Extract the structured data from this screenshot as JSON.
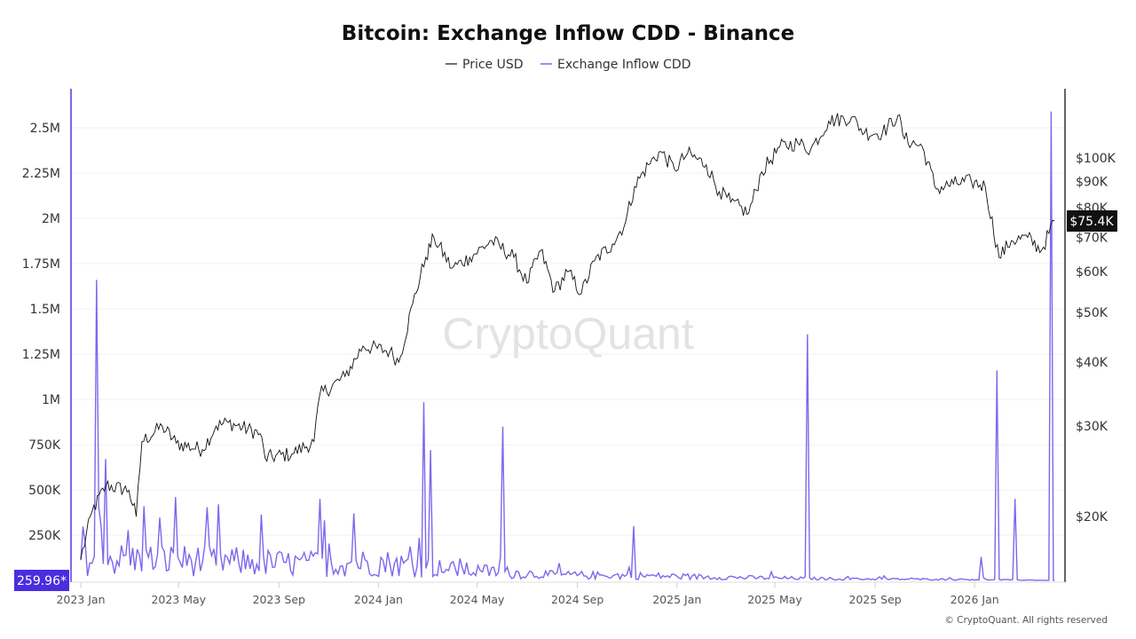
{
  "chart_data": {
    "type": "line",
    "title": "Bitcoin: Exchange Inflow CDD - Binance",
    "legend": [
      "Price USD",
      "Exchange Inflow CDD"
    ],
    "legend_placement": "top-center",
    "colors": {
      "price": "#111111",
      "cdd": "#7b68ee",
      "cdd_badge": "#4a2de0",
      "price_badge": "#111111"
    },
    "x_ticks": [
      "2023 Jan",
      "2023 May",
      "2023 Sep",
      "2024 Jan",
      "2024 May",
      "2024 Sep",
      "2025 Jan",
      "2025 May",
      "2025 Sep",
      "2026 Jan"
    ],
    "x_tick_dates": [
      "2023-01-01",
      "2023-05-01",
      "2023-09-01",
      "2024-01-01",
      "2024-05-01",
      "2024-09-01",
      "2025-01-01",
      "2025-05-01",
      "2025-09-01",
      "2026-01-01"
    ],
    "left_axis": {
      "label": "Exchange Inflow CDD",
      "ticks": [
        "250K",
        "500K",
        "750K",
        "1M",
        "1.25M",
        "1.5M",
        "1.75M",
        "2M",
        "2.25M",
        "2.5M"
      ],
      "tick_values": [
        250000,
        500000,
        750000,
        1000000,
        1250000,
        1500000,
        1750000,
        2000000,
        2250000,
        2500000
      ],
      "range": [
        0,
        2700000
      ]
    },
    "right_axis": {
      "label": "Price USD",
      "scale": "log",
      "ticks": [
        "$20K",
        "$30K",
        "$40K",
        "$50K",
        "$60K",
        "$70K",
        "$80K",
        "$90K",
        "$100K"
      ],
      "tick_values": [
        20000,
        30000,
        40000,
        50000,
        60000,
        70000,
        80000,
        90000,
        100000
      ]
    },
    "current_cdd_label": "259.96*",
    "current_price_label": "$75.4K",
    "price_series": [
      [
        "2023-01-01",
        16500
      ],
      [
        "2023-01-15",
        20500
      ],
      [
        "2023-02-01",
        23000
      ],
      [
        "2023-03-01",
        22500
      ],
      [
        "2023-03-10",
        20000
      ],
      [
        "2023-03-17",
        28000
      ],
      [
        "2023-04-11",
        30000
      ],
      [
        "2023-04-28",
        27800
      ],
      [
        "2023-05-30",
        27000
      ],
      [
        "2023-06-16",
        30000
      ],
      [
        "2023-07-01",
        30500
      ],
      [
        "2023-08-09",
        29000
      ],
      [
        "2023-08-15",
        26000
      ],
      [
        "2023-09-17",
        26500
      ],
      [
        "2023-10-14",
        28000
      ],
      [
        "2023-10-21",
        34500
      ],
      [
        "2023-11-21",
        37500
      ],
      [
        "2023-12-13",
        43000
      ],
      [
        "2024-01-15",
        42000
      ],
      [
        "2024-01-26",
        40000
      ],
      [
        "2024-02-12",
        52000
      ],
      [
        "2024-02-28",
        64000
      ],
      [
        "2024-03-09",
        70000
      ],
      [
        "2024-03-31",
        61000
      ],
      [
        "2024-04-22",
        64000
      ],
      [
        "2024-05-19",
        69000
      ],
      [
        "2024-06-15",
        64000
      ],
      [
        "2024-07-01",
        57000
      ],
      [
        "2024-07-18",
        66000
      ],
      [
        "2024-08-04",
        55000
      ],
      [
        "2024-08-20",
        60000
      ],
      [
        "2024-09-06",
        54500
      ],
      [
        "2024-09-22",
        63000
      ],
      [
        "2024-10-14",
        68000
      ],
      [
        "2024-10-30",
        75000
      ],
      [
        "2024-11-10",
        88000
      ],
      [
        "2024-11-27",
        97000
      ],
      [
        "2024-12-12",
        103000
      ],
      [
        "2024-12-29",
        95000
      ],
      [
        "2025-01-14",
        102000
      ],
      [
        "2025-02-06",
        97000
      ],
      [
        "2025-02-22",
        86000
      ],
      [
        "2025-03-08",
        82000
      ],
      [
        "2025-03-30",
        78000
      ],
      [
        "2025-04-15",
        94000
      ],
      [
        "2025-05-07",
        105000
      ],
      [
        "2025-05-29",
        107000
      ],
      [
        "2025-06-14",
        104000
      ],
      [
        "2025-07-06",
        118000
      ],
      [
        "2025-08-03",
        120000
      ],
      [
        "2025-08-19",
        112000
      ],
      [
        "2025-09-10",
        112000
      ],
      [
        "2025-09-29",
        121000
      ],
      [
        "2025-10-07",
        109000
      ],
      [
        "2025-10-29",
        105000
      ],
      [
        "2025-11-15",
        87000
      ],
      [
        "2025-12-06",
        89000
      ],
      [
        "2025-12-28",
        90000
      ],
      [
        "2026-01-14",
        88000
      ],
      [
        "2026-01-31",
        64000
      ],
      [
        "2026-02-15",
        69000
      ],
      [
        "2026-03-07",
        70000
      ],
      [
        "2026-03-24",
        66000
      ],
      [
        "2026-04-09",
        75400
      ]
    ],
    "cdd_baseline": [
      [
        "2023-01-01",
        120000
      ],
      [
        "2023-06-01",
        110000
      ],
      [
        "2023-10-01",
        90000
      ],
      [
        "2024-01-01",
        100000
      ],
      [
        "2024-04-01",
        60000
      ],
      [
        "2024-08-01",
        30000
      ],
      [
        "2024-12-01",
        25000
      ],
      [
        "2025-04-01",
        15000
      ],
      [
        "2025-08-01",
        8000
      ],
      [
        "2026-01-01",
        5000
      ],
      [
        "2026-04-09",
        260
      ]
    ],
    "cdd_spikes": [
      [
        "2023-01-20",
        1660000
      ],
      [
        "2023-02-01",
        670000
      ],
      [
        "2023-03-20",
        410000
      ],
      [
        "2023-04-28",
        460000
      ],
      [
        "2023-06-20",
        420000
      ],
      [
        "2023-10-20",
        450000
      ],
      [
        "2023-12-01",
        370000
      ],
      [
        "2024-02-26",
        985000
      ],
      [
        "2024-03-05",
        720000
      ],
      [
        "2024-06-02",
        850000
      ],
      [
        "2024-11-08",
        300000
      ],
      [
        "2025-06-10",
        1360000
      ],
      [
        "2026-01-10",
        130000
      ],
      [
        "2026-01-28",
        1160000
      ],
      [
        "2026-02-20",
        450000
      ],
      [
        "2026-04-06",
        2590000
      ]
    ],
    "watermark": "CryptoQuant",
    "copyright": "© CryptoQuant. All rights reserved"
  }
}
